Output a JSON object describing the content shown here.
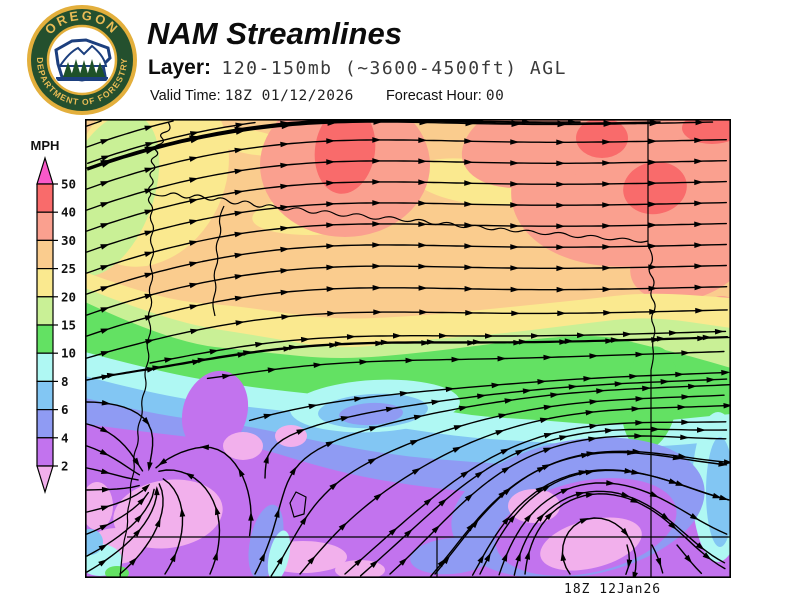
{
  "header": {
    "title": "NAM Streamlines",
    "layer_label": "Layer:",
    "layer_value": "120-150mb (~3600-4500ft) AGL",
    "valid_time_label": "Valid Time:",
    "valid_time_value": "18Z 01/12/2026",
    "forecast_hour_label": "Forecast Hour:",
    "forecast_hour_value": "00"
  },
  "logo": {
    "top_text": "OREGON",
    "bottom_text": "DEPARTMENT OF FORESTRY",
    "ring_color": "#24502E",
    "gold_color": "#E3AF3C",
    "emblem_blue": "#1C3F7E",
    "tree_green": "#1E5128"
  },
  "legend": {
    "label": "MPH",
    "ticks": [
      "50",
      "40",
      "30",
      "25",
      "20",
      "15",
      "10",
      "8",
      "6",
      "4",
      "2"
    ]
  },
  "map": {
    "timestamp": "18Z 12Jan26",
    "palette": [
      {
        "mph": ">50",
        "color": "#F959C9"
      },
      {
        "mph": "40-50",
        "color": "#F96B6B"
      },
      {
        "mph": "30-40",
        "color": "#FAA08F"
      },
      {
        "mph": "25-30",
        "color": "#FACC8E"
      },
      {
        "mph": "20-25",
        "color": "#FAE98F"
      },
      {
        "mph": "15-20",
        "color": "#C9F096"
      },
      {
        "mph": "10-15",
        "color": "#63E163"
      },
      {
        "mph": "8-10",
        "color": "#AFF8F3"
      },
      {
        "mph": "6-8",
        "color": "#82C6F3"
      },
      {
        "mph": "4-6",
        "color": "#8F9BF3"
      },
      {
        "mph": "2-4",
        "color": "#C273EE"
      },
      {
        "mph": "<2",
        "color": "#F2B0EC"
      }
    ]
  }
}
